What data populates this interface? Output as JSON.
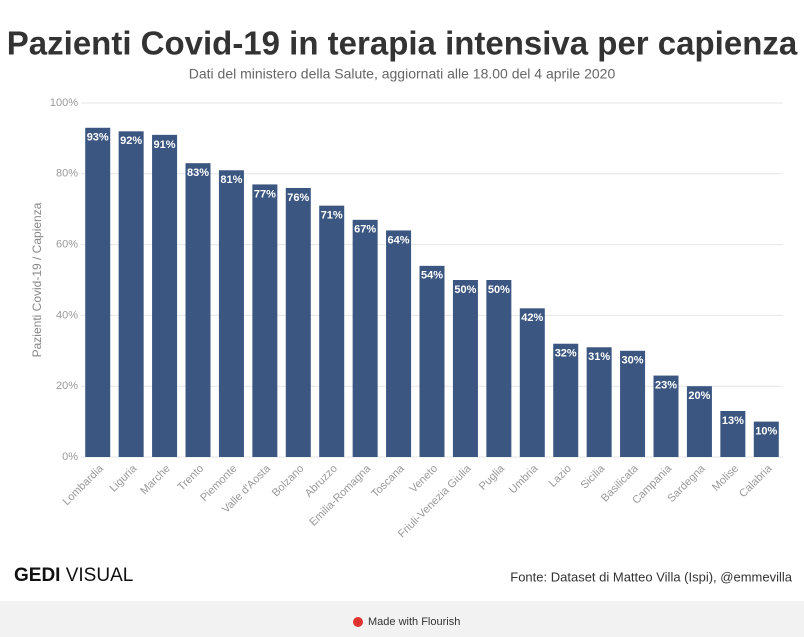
{
  "chart_data": {
    "type": "bar",
    "title": "Pazienti Covid-19 in terapia intensiva per capienza",
    "subtitle": "Dati del ministero della Salute, aggiornati alle 18.00 del 4 aprile 2020",
    "y_label": "Pazienti Covid-19 / Capienza",
    "categories": [
      "Lombardia",
      "Liguria",
      "Marche",
      "Trento",
      "Piemonte",
      "Valle d'Aosta",
      "Bolzano",
      "Abruzzo",
      "Emilia-Romagna",
      "Toscana",
      "Veneto",
      "Friuli-Venezia Giulia",
      "Puglia",
      "Umbria",
      "Lazio",
      "Sicilia",
      "Basilicata",
      "Campania",
      "Sardegna",
      "Molise",
      "Calabria"
    ],
    "values": [
      93,
      92,
      91,
      83,
      81,
      77,
      76,
      71,
      67,
      64,
      54,
      50,
      50,
      42,
      32,
      31,
      30,
      23,
      20,
      13,
      10
    ],
    "value_labels": [
      "93%",
      "92%",
      "91%",
      "83%",
      "81%",
      "77%",
      "76%",
      "71%",
      "67%",
      "64%",
      "54%",
      "50%",
      "50%",
      "42%",
      "32%",
      "31%",
      "30%",
      "23%",
      "20%",
      "13%",
      "10%"
    ],
    "color": "#3b5680",
    "ylim": [
      0,
      100
    ],
    "yticks": [
      {
        "value": 0,
        "label": "0%"
      },
      {
        "value": 20,
        "label": "20%"
      },
      {
        "value": 40,
        "label": "40%"
      },
      {
        "value": 60,
        "label": "60%"
      },
      {
        "value": 80,
        "label": "80%"
      },
      {
        "value": 100,
        "label": "100%"
      }
    ],
    "grid": true
  },
  "footer": {
    "logo_bold": "GEDI",
    "logo_light": "VISUAL",
    "source": "Fonte: Dataset di Matteo Villa (Ispi), @emmevilla",
    "credit": "Made with Flourish"
  }
}
